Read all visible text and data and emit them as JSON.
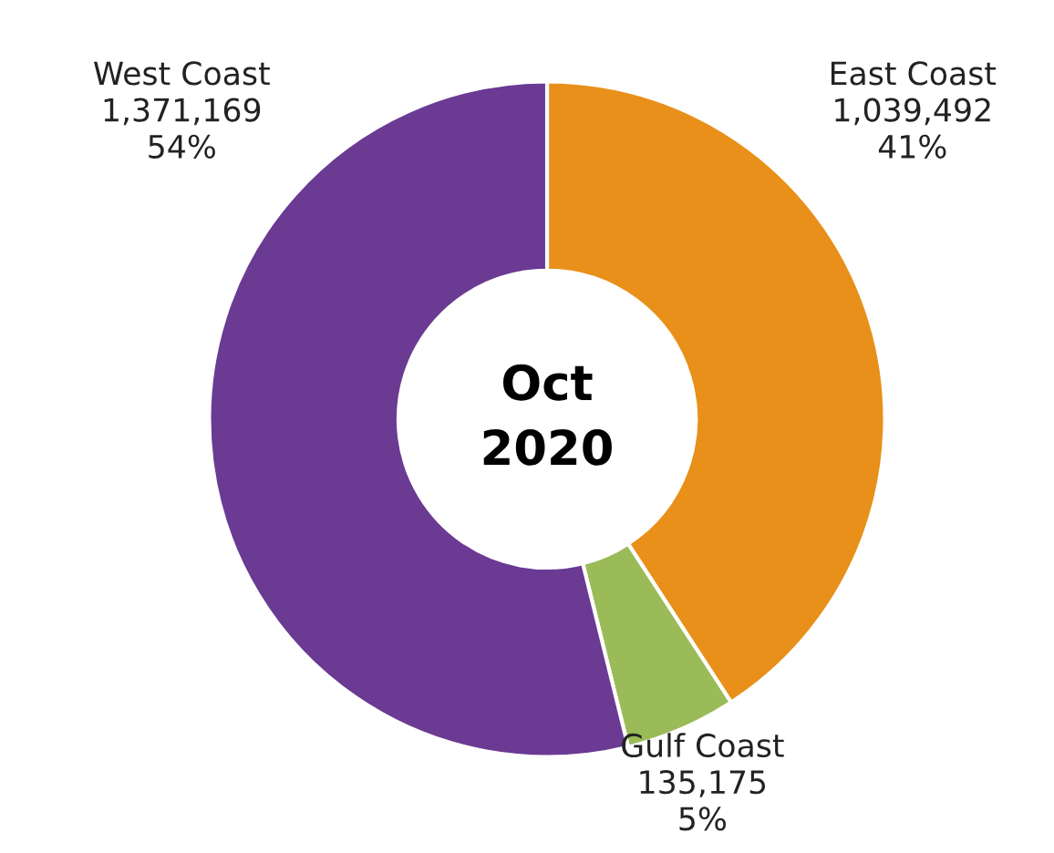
{
  "chart_data": {
    "type": "donut",
    "categories": [
      "East Coast",
      "Gulf Coast",
      "West Coast"
    ],
    "values": [
      1039492,
      135175,
      1371169
    ],
    "colors": [
      "#e8901a",
      "#9bbb59",
      "#6b3a93"
    ],
    "value_labels": [
      "1,039,492\n41%",
      "135,175\n5%",
      "1,371,169\n54%"
    ],
    "annotations": [
      "Oct\n2020"
    ],
    "legend": false
  }
}
